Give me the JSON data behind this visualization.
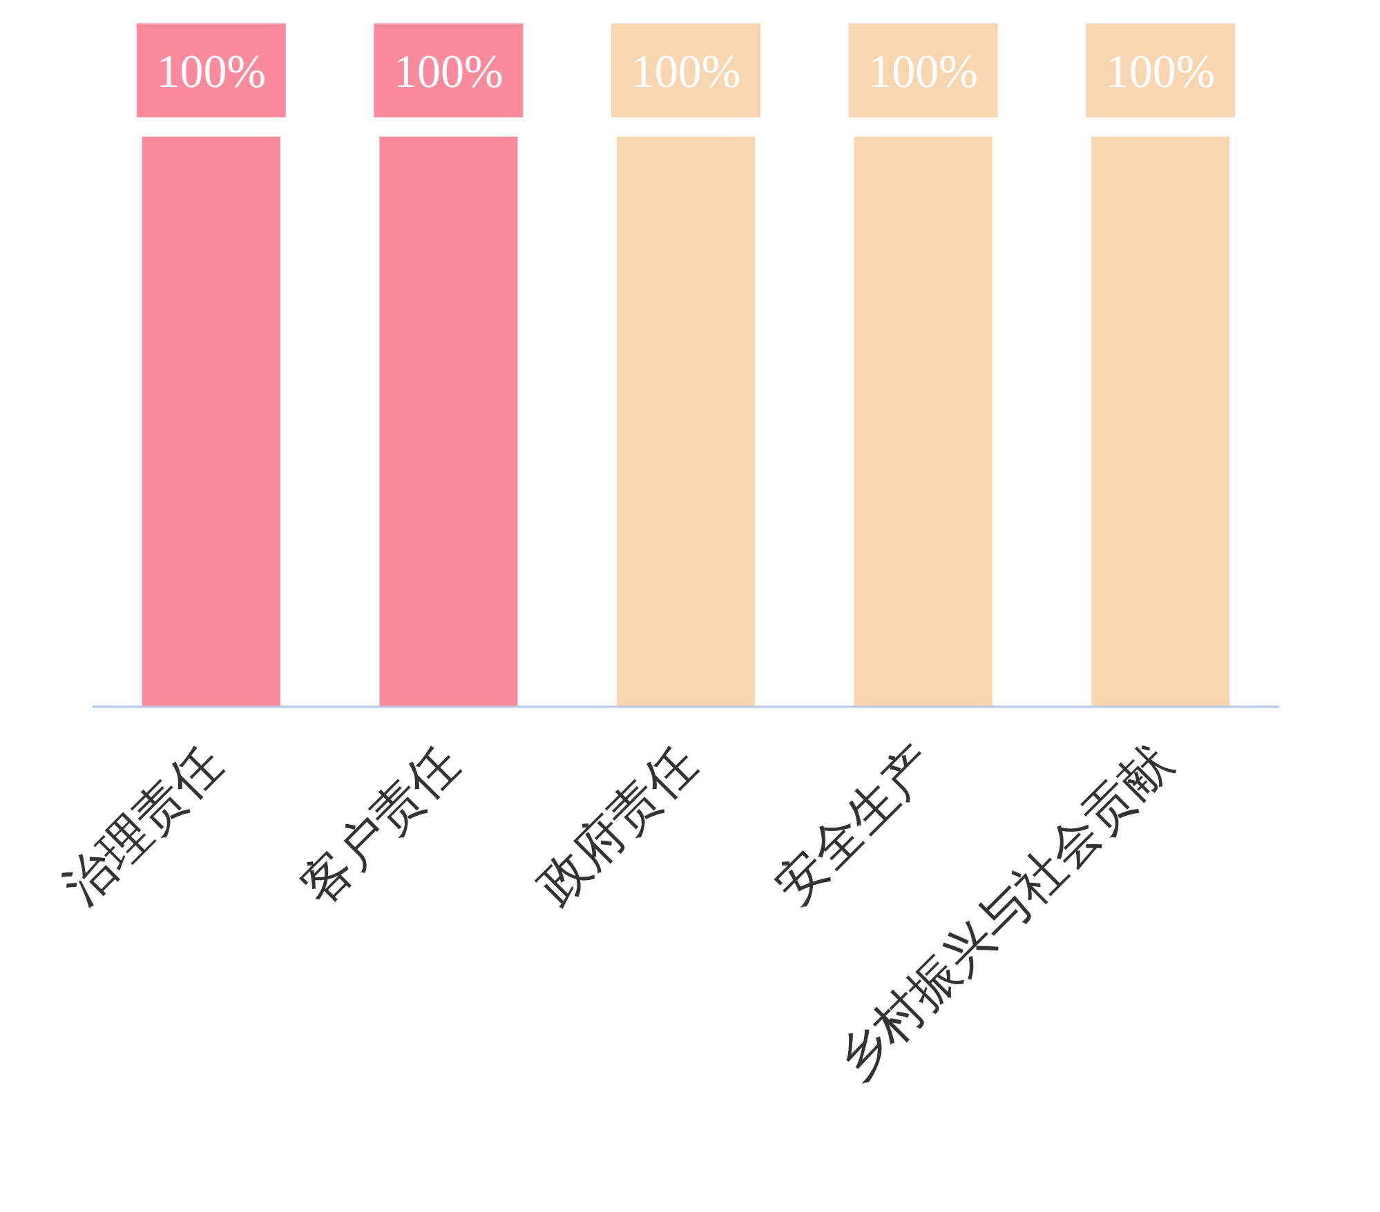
{
  "chart_data": {
    "type": "bar",
    "categories": [
      "治理责任",
      "客户责任",
      "政府责任",
      "安全生产",
      "乡村振兴与社会贡献"
    ],
    "values": [
      100,
      100,
      100,
      100,
      100
    ],
    "colors": [
      "#fa8b9c",
      "#fa8b9c",
      "#f9d6b2",
      "#f9d6b2",
      "#f9d6b2"
    ],
    "value_labels": [
      "100%",
      "100%",
      "100%",
      "100%",
      "100%"
    ]
  }
}
